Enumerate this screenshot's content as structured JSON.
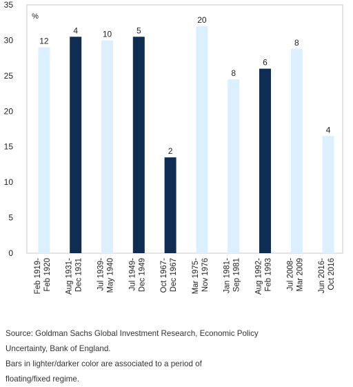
{
  "chart_data": {
    "type": "bar",
    "ylabel_unit": "%",
    "ylim": [
      0,
      35
    ],
    "yticks": [
      0,
      5,
      10,
      15,
      20,
      25,
      30,
      35
    ],
    "categories": [
      [
        "Feb 1919-",
        "Feb 1920"
      ],
      [
        "Aug 1931-",
        "Dec 1931"
      ],
      [
        "Jul 1939-",
        "May 1940"
      ],
      [
        "Jul 1949-",
        "Dec 1949"
      ],
      [
        "Oct 1967-",
        "Dec 1967"
      ],
      [
        "Mar 1975-",
        "Nov 1976"
      ],
      [
        "Jan 1981-",
        "Sep 1981"
      ],
      [
        "Aug 1992-",
        "Feb 1993"
      ],
      [
        "Jul 2008-",
        "Mar 2009"
      ],
      [
        "Jun 2016-",
        "Oct 2016"
      ]
    ],
    "values": [
      29,
      30.5,
      30,
      30.5,
      13.5,
      32,
      24.5,
      26,
      28.8,
      16.5
    ],
    "data_labels": [
      "12",
      "4",
      "10",
      "5",
      "2",
      "20",
      "8",
      "6",
      "8",
      "4"
    ],
    "regime": [
      "floating",
      "fixed",
      "floating",
      "fixed",
      "fixed",
      "floating",
      "floating",
      "fixed",
      "floating",
      "floating"
    ],
    "colors": {
      "floating": "#dcefff",
      "fixed": "#0f2d52"
    },
    "grid": false,
    "legend": "none"
  },
  "notes": {
    "source": "Source: Goldman Sachs Global Investment Research, Economic Policy",
    "source_cont": "Uncertainty, Bank of England.",
    "regime_note": "Bars in lighter/darker color are associated to a period of",
    "regime_note_cont": "floating/fixed regime."
  }
}
